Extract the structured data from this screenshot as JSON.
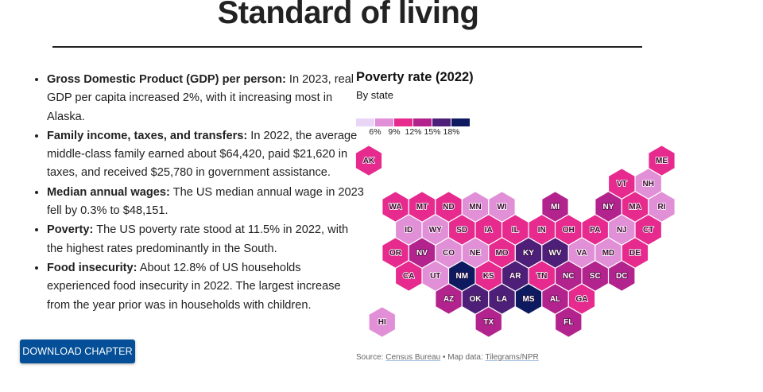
{
  "page": {
    "title": "Standard of living",
    "download_label": "DOWNLOAD CHAPTER"
  },
  "bullets": [
    {
      "label": "Gross Domestic Product (GDP) per person:",
      "text": " In 2023, real GDP per capita increased 2%, with it increasing most in Alaska."
    },
    {
      "label": "Family income, taxes, and transfers:",
      "text": " In 2022, the average middle-class family earned about $64,420, paid $21,620 in taxes, and received $25,780 in government assistance."
    },
    {
      "label": "Median annual wages:",
      "text": " The US median annual wage in 2023 fell by 0.3% to $48,151."
    },
    {
      "label": "Poverty:",
      "text": " The US poverty rate stood at 11.5% in 2022, with the highest rates predominantly in the South."
    },
    {
      "label": "Food insecurity:",
      "text": " About 12.8% of US households experienced food insecurity in 2022. The largest increase from the year prior was in households with children."
    }
  ],
  "source": {
    "prefix": "Source: ",
    "source_link": "Census Bureau",
    "separator": " • Map data: ",
    "map_link": "Tilegrams/NPR"
  },
  "chart_data": {
    "type": "heatmap",
    "subtype": "hex-tile-map",
    "title": "Poverty rate (2022)",
    "subtitle": "By state",
    "legend": {
      "thresholds": [
        "6%",
        "9%",
        "12%",
        "15%",
        "18%"
      ],
      "bins": [
        {
          "range": "<6%",
          "color": "#e9d6f6"
        },
        {
          "range": "6–9%",
          "color": "#e18fd6"
        },
        {
          "range": "9–12%",
          "color": "#e62a8e"
        },
        {
          "range": "12–15%",
          "color": "#b3238d"
        },
        {
          "range": "15–18%",
          "color": "#4e1f79"
        },
        {
          "range": "18%+",
          "color": "#0e1a60"
        }
      ]
    },
    "states": [
      {
        "abbr": "AK",
        "bin": 2,
        "row": 0,
        "col": 0
      },
      {
        "abbr": "ME",
        "bin": 2,
        "row": 0,
        "col": 11
      },
      {
        "abbr": "VT",
        "bin": 2,
        "row": 1,
        "col": 9.5
      },
      {
        "abbr": "NH",
        "bin": 1,
        "row": 1,
        "col": 10.5
      },
      {
        "abbr": "WA",
        "bin": 2,
        "row": 2,
        "col": 1
      },
      {
        "abbr": "MT",
        "bin": 2,
        "row": 2,
        "col": 2
      },
      {
        "abbr": "ND",
        "bin": 2,
        "row": 2,
        "col": 3
      },
      {
        "abbr": "MN",
        "bin": 1,
        "row": 2,
        "col": 4
      },
      {
        "abbr": "WI",
        "bin": 1,
        "row": 2,
        "col": 5
      },
      {
        "abbr": "MI",
        "bin": 3,
        "row": 2,
        "col": 7
      },
      {
        "abbr": "NY",
        "bin": 3,
        "row": 2,
        "col": 9
      },
      {
        "abbr": "MA",
        "bin": 2,
        "row": 2,
        "col": 10
      },
      {
        "abbr": "RI",
        "bin": 1,
        "row": 2,
        "col": 11
      },
      {
        "abbr": "ID",
        "bin": 1,
        "row": 3,
        "col": 1.5
      },
      {
        "abbr": "WY",
        "bin": 1,
        "row": 3,
        "col": 2.5
      },
      {
        "abbr": "SD",
        "bin": 2,
        "row": 3,
        "col": 3.5
      },
      {
        "abbr": "IA",
        "bin": 2,
        "row": 3,
        "col": 4.5
      },
      {
        "abbr": "IL",
        "bin": 2,
        "row": 3,
        "col": 5.5
      },
      {
        "abbr": "IN",
        "bin": 2,
        "row": 3,
        "col": 6.5
      },
      {
        "abbr": "OH",
        "bin": 2,
        "row": 3,
        "col": 7.5
      },
      {
        "abbr": "PA",
        "bin": 2,
        "row": 3,
        "col": 8.5
      },
      {
        "abbr": "NJ",
        "bin": 1,
        "row": 3,
        "col": 9.5
      },
      {
        "abbr": "CT",
        "bin": 2,
        "row": 3,
        "col": 10.5
      },
      {
        "abbr": "OR",
        "bin": 2,
        "row": 4,
        "col": 1
      },
      {
        "abbr": "NV",
        "bin": 3,
        "row": 4,
        "col": 2
      },
      {
        "abbr": "CO",
        "bin": 1,
        "row": 4,
        "col": 3
      },
      {
        "abbr": "NE",
        "bin": 1,
        "row": 4,
        "col": 4
      },
      {
        "abbr": "MO",
        "bin": 2,
        "row": 4,
        "col": 5
      },
      {
        "abbr": "KY",
        "bin": 4,
        "row": 4,
        "col": 6
      },
      {
        "abbr": "WV",
        "bin": 4,
        "row": 4,
        "col": 7
      },
      {
        "abbr": "VA",
        "bin": 1,
        "row": 4,
        "col": 8
      },
      {
        "abbr": "MD",
        "bin": 1,
        "row": 4,
        "col": 9
      },
      {
        "abbr": "DE",
        "bin": 2,
        "row": 4,
        "col": 10
      },
      {
        "abbr": "CA",
        "bin": 2,
        "row": 5,
        "col": 1.5
      },
      {
        "abbr": "UT",
        "bin": 1,
        "row": 5,
        "col": 2.5
      },
      {
        "abbr": "NM",
        "bin": 5,
        "row": 5,
        "col": 3.5
      },
      {
        "abbr": "KS",
        "bin": 2,
        "row": 5,
        "col": 4.5
      },
      {
        "abbr": "AR",
        "bin": 4,
        "row": 5,
        "col": 5.5
      },
      {
        "abbr": "TN",
        "bin": 2,
        "row": 5,
        "col": 6.5
      },
      {
        "abbr": "NC",
        "bin": 3,
        "row": 5,
        "col": 7.5
      },
      {
        "abbr": "SC",
        "bin": 3,
        "row": 5,
        "col": 8.5
      },
      {
        "abbr": "DC",
        "bin": 3,
        "row": 5,
        "col": 9.5
      },
      {
        "abbr": "AZ",
        "bin": 3,
        "row": 6,
        "col": 3
      },
      {
        "abbr": "OK",
        "bin": 4,
        "row": 6,
        "col": 4
      },
      {
        "abbr": "LA",
        "bin": 4,
        "row": 6,
        "col": 5
      },
      {
        "abbr": "MS",
        "bin": 5,
        "row": 6,
        "col": 6
      },
      {
        "abbr": "AL",
        "bin": 3,
        "row": 6,
        "col": 7
      },
      {
        "abbr": "GA",
        "bin": 2,
        "row": 6,
        "col": 8
      },
      {
        "abbr": "HI",
        "bin": 1,
        "row": 7,
        "col": 0.5
      },
      {
        "abbr": "TX",
        "bin": 3,
        "row": 7,
        "col": 4.5
      },
      {
        "abbr": "FL",
        "bin": 3,
        "row": 7,
        "col": 7.5
      }
    ]
  }
}
